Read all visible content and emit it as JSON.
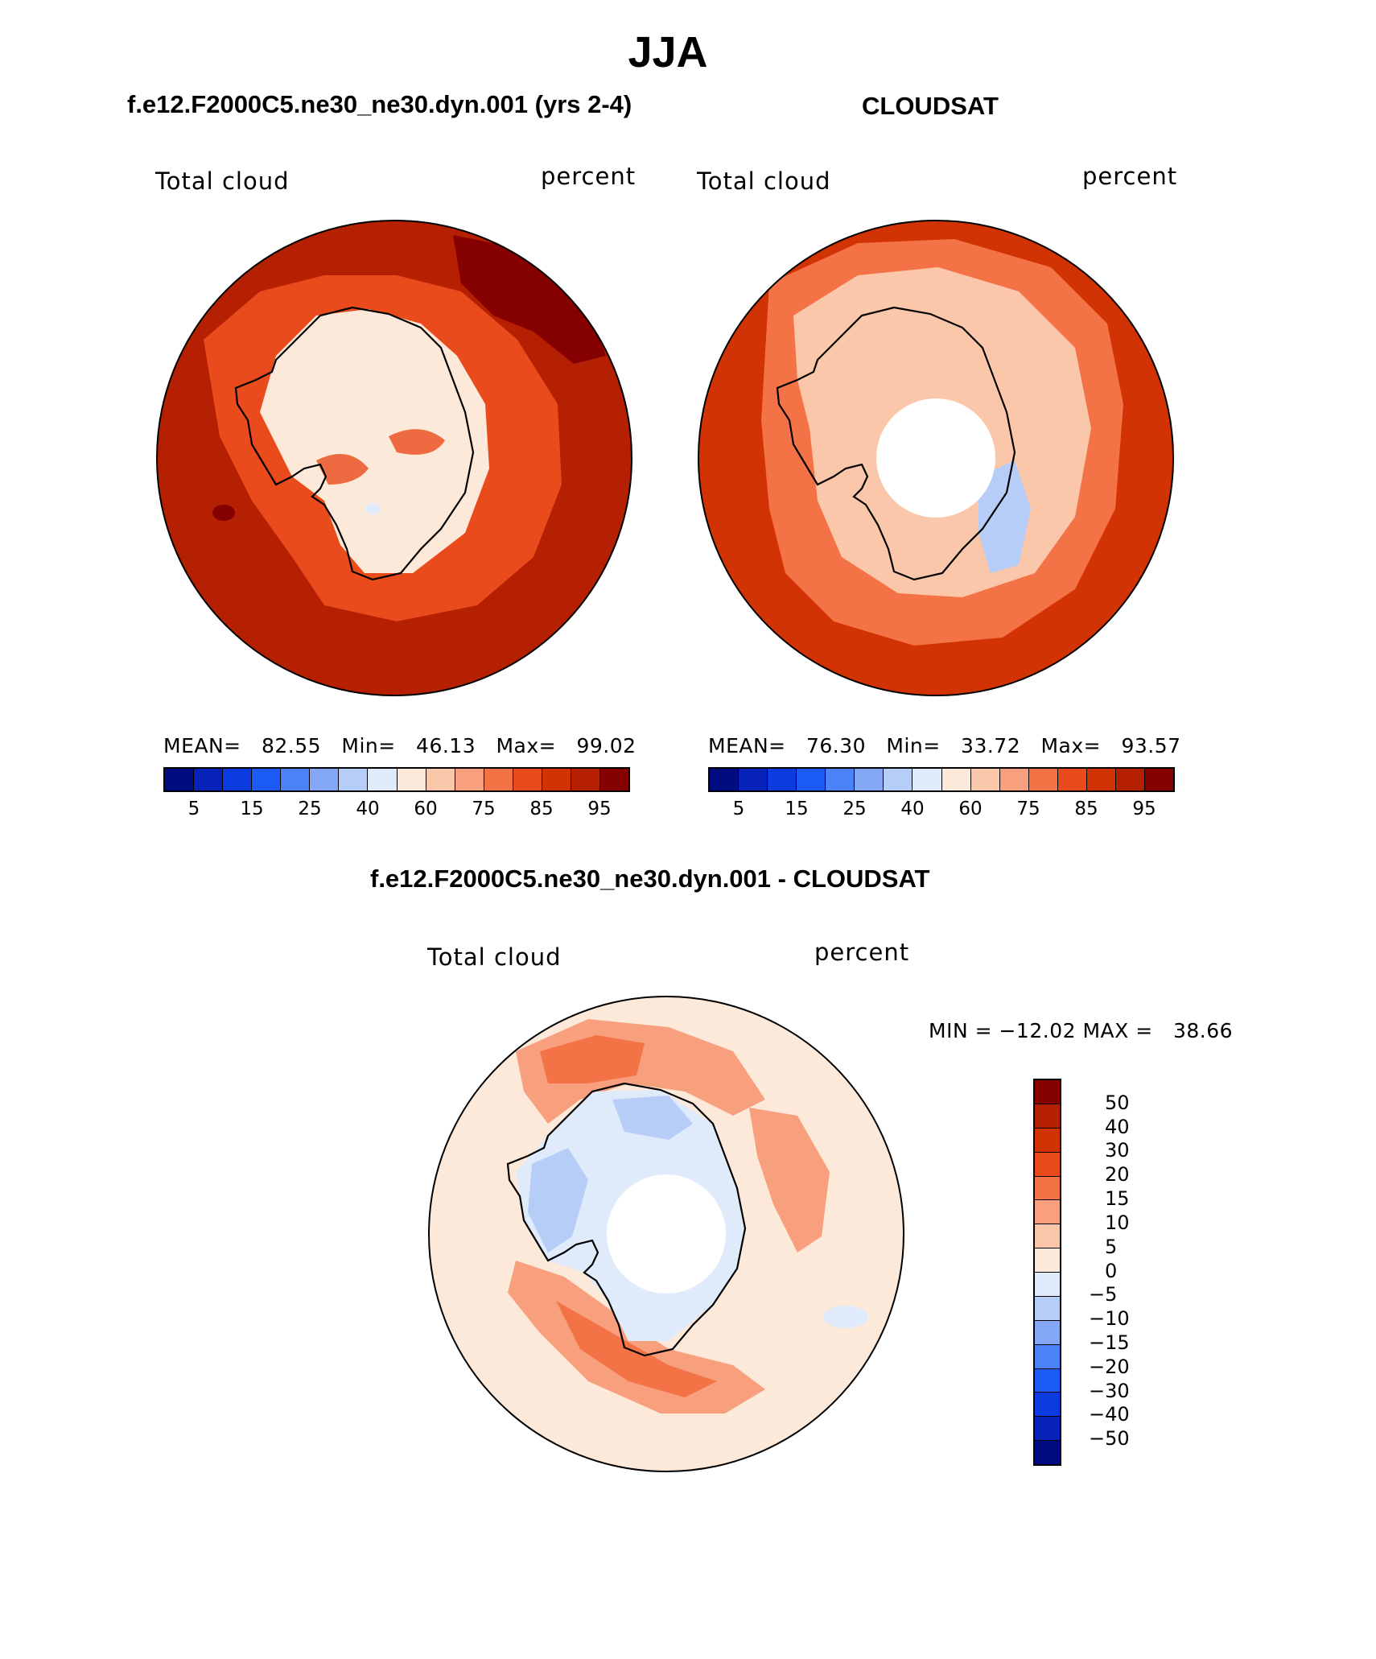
{
  "main_title": "JJA",
  "panel_left": {
    "title": "f.e12.F2000C5.ne30_ne30.dyn.001 (yrs 2-4)",
    "variable": "Total cloud",
    "units": "percent",
    "stats_mean_label": "MEAN=",
    "stats_mean": "82.55",
    "stats_min_label": "Min=",
    "stats_min": "46.13",
    "stats_max_label": "Max=",
    "stats_max": "99.02"
  },
  "panel_right": {
    "title": "CLOUDSAT",
    "variable": "Total cloud",
    "units": "percent",
    "stats_mean_label": "MEAN=",
    "stats_mean": "76.30",
    "stats_min_label": "Min=",
    "stats_min": "33.72",
    "stats_max_label": "Max=",
    "stats_max": "93.57"
  },
  "panel_diff": {
    "title": "f.e12.F2000C5.ne30_ne30.dyn.001 - CLOUDSAT",
    "variable": "Total cloud",
    "units": "percent",
    "minmax": "MIN = −12.02 MAX =   38.66"
  },
  "colorbar_top_ticks": [
    "5",
    "15",
    "25",
    "40",
    "60",
    "75",
    "85",
    "95"
  ],
  "colorbar_top_colors": [
    "#000b80",
    "#0722b8",
    "#0c3be0",
    "#1d5bf6",
    "#4b82f7",
    "#85a8f6",
    "#b6cdf7",
    "#dfeafb",
    "#fde9d9",
    "#fbc7ab",
    "#f8a07e",
    "#f47346",
    "#ea4b1c",
    "#d23305",
    "#b51f02",
    "#850000"
  ],
  "colorbar_diff_labels": [
    "50",
    "40",
    "30",
    "20",
    "15",
    "10",
    "5",
    "0",
    "−5",
    "−10",
    "−15",
    "−20",
    "−30",
    "−40",
    "−50"
  ],
  "colorbar_diff_colors": [
    "#850000",
    "#b51f02",
    "#d23305",
    "#ea4b1c",
    "#f47346",
    "#f8a07e",
    "#fbc7ab",
    "#fde9d9",
    "#dfeafb",
    "#b6cdf7",
    "#85a8f6",
    "#4b82f7",
    "#1d5bf6",
    "#0c3be0",
    "#0722b8",
    "#000b80"
  ],
  "map_palette": {
    "model_ocean": "#b51f02",
    "model_ocean_dark": "#850000",
    "model_coast": "#ea4b1c",
    "model_ice": "#fde9d9",
    "obs_ocean": "#d23305",
    "obs_band": "#f47346",
    "obs_inner": "#fbc7ab",
    "obs_blue": "#b6cdf7",
    "diff_bg": "#fde9d9",
    "diff_orange": "#f8a07e",
    "diff_red": "#f47346",
    "diff_blue": "#b6cdf7",
    "diff_lightblue": "#dfeafb"
  }
}
